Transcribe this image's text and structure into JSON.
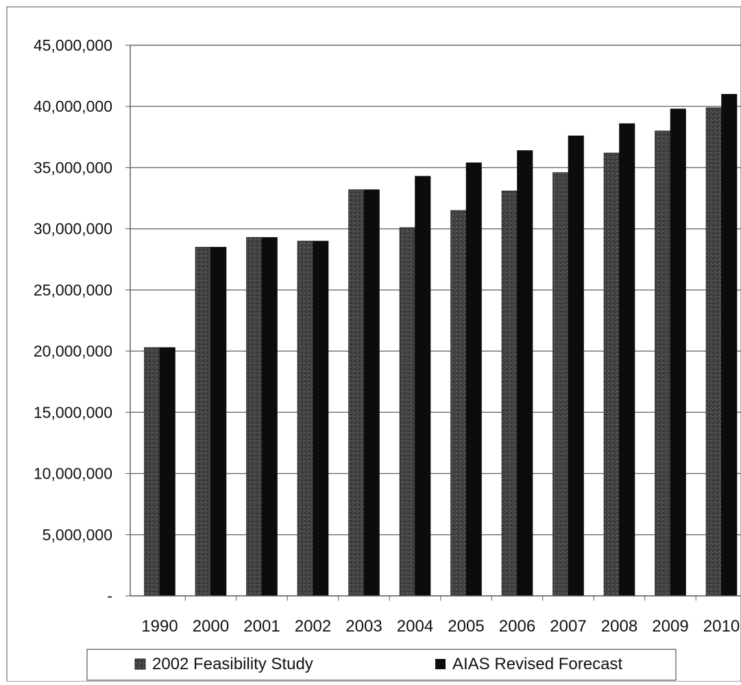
{
  "chart_data": {
    "type": "bar",
    "categories": [
      "1990",
      "2000",
      "2001",
      "2002",
      "2003",
      "2004",
      "2005",
      "2006",
      "2007",
      "2008",
      "2009",
      "2010"
    ],
    "series": [
      {
        "name": "2002 Feasibility Study",
        "color": "#4a4a4a",
        "values": [
          20300000,
          28500000,
          29300000,
          29000000,
          33200000,
          30100000,
          31500000,
          33100000,
          34600000,
          36200000,
          38000000,
          39900000
        ]
      },
      {
        "name": "AIAS Revised Forecast",
        "color": "#0c0c0c",
        "values": [
          20300000,
          28500000,
          29300000,
          29000000,
          33200000,
          34300000,
          35400000,
          36400000,
          37600000,
          38600000,
          39800000,
          41000000
        ]
      }
    ],
    "yticks": [
      {
        "value": 0,
        "label": "-"
      },
      {
        "value": 5000000,
        "label": "5,000,000"
      },
      {
        "value": 10000000,
        "label": "10,000,000"
      },
      {
        "value": 15000000,
        "label": "15,000,000"
      },
      {
        "value": 20000000,
        "label": "20,000,000"
      },
      {
        "value": 25000000,
        "label": "25,000,000"
      },
      {
        "value": 30000000,
        "label": "30,000,000"
      },
      {
        "value": 35000000,
        "label": "35,000,000"
      },
      {
        "value": 40000000,
        "label": "40,000,000"
      },
      {
        "value": 45000000,
        "label": "45,000,000"
      }
    ],
    "ylim": [
      0,
      45000000
    ],
    "grid": true,
    "legend_position": "bottom",
    "title": "",
    "xlabel": "",
    "ylabel": ""
  }
}
